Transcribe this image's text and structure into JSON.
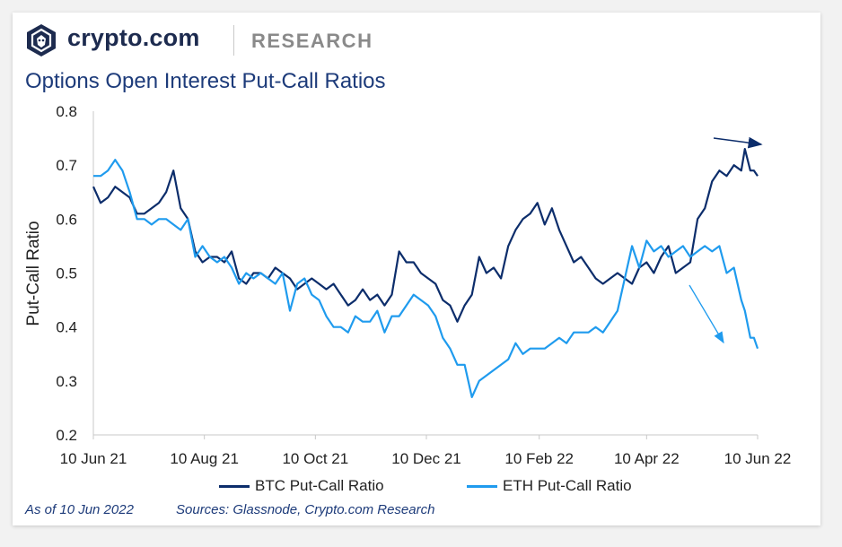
{
  "header": {
    "brand": "crypto.com",
    "section": "RESEARCH",
    "logo_icon": "crypto-com-lion-shield-icon"
  },
  "footer": {
    "as_of": "As of 10 Jun 2022",
    "sources": "Sources: Glassnode, Crypto.com Research"
  },
  "chart_data": {
    "type": "line",
    "title": "Options Open Interest Put-Call Ratios",
    "xlabel": "",
    "ylabel": "Put-Call Ratio",
    "ylim": [
      0.2,
      0.8
    ],
    "yticks": [
      "0.2",
      "0.3",
      "0.4",
      "0.5",
      "0.6",
      "0.7",
      "0.8"
    ],
    "xlim": [
      "2021-06-10",
      "2022-06-10"
    ],
    "xticks": [
      {
        "date": "2021-06-10",
        "label": "10 Jun 21"
      },
      {
        "date": "2021-08-10",
        "label": "10 Aug 21"
      },
      {
        "date": "2021-10-10",
        "label": "10 Oct 21"
      },
      {
        "date": "2021-12-10",
        "label": "10 Dec 21"
      },
      {
        "date": "2022-02-10",
        "label": "10 Feb 22"
      },
      {
        "date": "2022-04-10",
        "label": "10 Apr 22"
      },
      {
        "date": "2022-06-10",
        "label": "10 Jun 22"
      }
    ],
    "grid": false,
    "legend_position": "bottom",
    "series": [
      {
        "name": "BTC Put-Call Ratio",
        "color": "#0c2d6b",
        "points": [
          [
            "2021-06-10",
            0.66
          ],
          [
            "2021-06-14",
            0.63
          ],
          [
            "2021-06-18",
            0.64
          ],
          [
            "2021-06-22",
            0.66
          ],
          [
            "2021-06-26",
            0.65
          ],
          [
            "2021-06-30",
            0.64
          ],
          [
            "2021-07-04",
            0.61
          ],
          [
            "2021-07-08",
            0.61
          ],
          [
            "2021-07-12",
            0.62
          ],
          [
            "2021-07-16",
            0.63
          ],
          [
            "2021-07-20",
            0.65
          ],
          [
            "2021-07-24",
            0.69
          ],
          [
            "2021-07-28",
            0.62
          ],
          [
            "2021-08-01",
            0.6
          ],
          [
            "2021-08-05",
            0.54
          ],
          [
            "2021-08-09",
            0.52
          ],
          [
            "2021-08-13",
            0.53
          ],
          [
            "2021-08-17",
            0.53
          ],
          [
            "2021-08-21",
            0.52
          ],
          [
            "2021-08-25",
            0.54
          ],
          [
            "2021-08-29",
            0.49
          ],
          [
            "2021-09-02",
            0.48
          ],
          [
            "2021-09-06",
            0.5
          ],
          [
            "2021-09-10",
            0.5
          ],
          [
            "2021-09-14",
            0.49
          ],
          [
            "2021-09-18",
            0.51
          ],
          [
            "2021-09-22",
            0.5
          ],
          [
            "2021-09-26",
            0.49
          ],
          [
            "2021-09-30",
            0.47
          ],
          [
            "2021-10-04",
            0.48
          ],
          [
            "2021-10-08",
            0.49
          ],
          [
            "2021-10-12",
            0.48
          ],
          [
            "2021-10-16",
            0.47
          ],
          [
            "2021-10-20",
            0.48
          ],
          [
            "2021-10-24",
            0.46
          ],
          [
            "2021-10-28",
            0.44
          ],
          [
            "2021-11-01",
            0.45
          ],
          [
            "2021-11-05",
            0.47
          ],
          [
            "2021-11-09",
            0.45
          ],
          [
            "2021-11-13",
            0.46
          ],
          [
            "2021-11-17",
            0.44
          ],
          [
            "2021-11-21",
            0.46
          ],
          [
            "2021-11-25",
            0.54
          ],
          [
            "2021-11-29",
            0.52
          ],
          [
            "2021-12-03",
            0.52
          ],
          [
            "2021-12-07",
            0.5
          ],
          [
            "2021-12-11",
            0.49
          ],
          [
            "2021-12-15",
            0.48
          ],
          [
            "2021-12-19",
            0.45
          ],
          [
            "2021-12-23",
            0.44
          ],
          [
            "2021-12-27",
            0.41
          ],
          [
            "2021-12-31",
            0.44
          ],
          [
            "2022-01-04",
            0.46
          ],
          [
            "2022-01-08",
            0.53
          ],
          [
            "2022-01-12",
            0.5
          ],
          [
            "2022-01-16",
            0.51
          ],
          [
            "2022-01-20",
            0.49
          ],
          [
            "2022-01-24",
            0.55
          ],
          [
            "2022-01-28",
            0.58
          ],
          [
            "2022-02-01",
            0.6
          ],
          [
            "2022-02-05",
            0.61
          ],
          [
            "2022-02-09",
            0.63
          ],
          [
            "2022-02-13",
            0.59
          ],
          [
            "2022-02-17",
            0.62
          ],
          [
            "2022-02-21",
            0.58
          ],
          [
            "2022-02-25",
            0.55
          ],
          [
            "2022-03-01",
            0.52
          ],
          [
            "2022-03-05",
            0.53
          ],
          [
            "2022-03-09",
            0.51
          ],
          [
            "2022-03-13",
            0.49
          ],
          [
            "2022-03-17",
            0.48
          ],
          [
            "2022-03-21",
            0.49
          ],
          [
            "2022-03-25",
            0.5
          ],
          [
            "2022-03-29",
            0.49
          ],
          [
            "2022-04-02",
            0.48
          ],
          [
            "2022-04-06",
            0.51
          ],
          [
            "2022-04-10",
            0.52
          ],
          [
            "2022-04-14",
            0.5
          ],
          [
            "2022-04-18",
            0.53
          ],
          [
            "2022-04-22",
            0.55
          ],
          [
            "2022-04-26",
            0.5
          ],
          [
            "2022-04-30",
            0.51
          ],
          [
            "2022-05-04",
            0.52
          ],
          [
            "2022-05-08",
            0.6
          ],
          [
            "2022-05-12",
            0.62
          ],
          [
            "2022-05-16",
            0.67
          ],
          [
            "2022-05-20",
            0.69
          ],
          [
            "2022-05-24",
            0.68
          ],
          [
            "2022-05-28",
            0.7
          ],
          [
            "2022-06-01",
            0.69
          ],
          [
            "2022-06-03",
            0.73
          ],
          [
            "2022-06-06",
            0.69
          ],
          [
            "2022-06-08",
            0.69
          ],
          [
            "2022-06-10",
            0.68
          ]
        ]
      },
      {
        "name": "ETH Put-Call Ratio",
        "color": "#1f9bee",
        "points": [
          [
            "2021-06-10",
            0.68
          ],
          [
            "2021-06-14",
            0.68
          ],
          [
            "2021-06-18",
            0.69
          ],
          [
            "2021-06-22",
            0.71
          ],
          [
            "2021-06-26",
            0.69
          ],
          [
            "2021-06-30",
            0.65
          ],
          [
            "2021-07-04",
            0.6
          ],
          [
            "2021-07-08",
            0.6
          ],
          [
            "2021-07-12",
            0.59
          ],
          [
            "2021-07-16",
            0.6
          ],
          [
            "2021-07-20",
            0.6
          ],
          [
            "2021-07-24",
            0.59
          ],
          [
            "2021-07-28",
            0.58
          ],
          [
            "2021-08-01",
            0.6
          ],
          [
            "2021-08-05",
            0.53
          ],
          [
            "2021-08-09",
            0.55
          ],
          [
            "2021-08-13",
            0.53
          ],
          [
            "2021-08-17",
            0.52
          ],
          [
            "2021-08-21",
            0.53
          ],
          [
            "2021-08-25",
            0.51
          ],
          [
            "2021-08-29",
            0.48
          ],
          [
            "2021-09-02",
            0.5
          ],
          [
            "2021-09-06",
            0.49
          ],
          [
            "2021-09-10",
            0.5
          ],
          [
            "2021-09-14",
            0.49
          ],
          [
            "2021-09-18",
            0.48
          ],
          [
            "2021-09-22",
            0.5
          ],
          [
            "2021-09-26",
            0.43
          ],
          [
            "2021-09-30",
            0.48
          ],
          [
            "2021-10-04",
            0.49
          ],
          [
            "2021-10-08",
            0.46
          ],
          [
            "2021-10-12",
            0.45
          ],
          [
            "2021-10-16",
            0.42
          ],
          [
            "2021-10-20",
            0.4
          ],
          [
            "2021-10-24",
            0.4
          ],
          [
            "2021-10-28",
            0.39
          ],
          [
            "2021-11-01",
            0.42
          ],
          [
            "2021-11-05",
            0.41
          ],
          [
            "2021-11-09",
            0.41
          ],
          [
            "2021-11-13",
            0.43
          ],
          [
            "2021-11-17",
            0.39
          ],
          [
            "2021-11-21",
            0.42
          ],
          [
            "2021-11-25",
            0.42
          ],
          [
            "2021-11-29",
            0.44
          ],
          [
            "2021-12-03",
            0.46
          ],
          [
            "2021-12-07",
            0.45
          ],
          [
            "2021-12-11",
            0.44
          ],
          [
            "2021-12-15",
            0.42
          ],
          [
            "2021-12-19",
            0.38
          ],
          [
            "2021-12-23",
            0.36
          ],
          [
            "2021-12-27",
            0.33
          ],
          [
            "2021-12-31",
            0.33
          ],
          [
            "2022-01-04",
            0.27
          ],
          [
            "2022-01-08",
            0.3
          ],
          [
            "2022-01-12",
            0.31
          ],
          [
            "2022-01-16",
            0.32
          ],
          [
            "2022-01-20",
            0.33
          ],
          [
            "2022-01-24",
            0.34
          ],
          [
            "2022-01-28",
            0.37
          ],
          [
            "2022-02-01",
            0.35
          ],
          [
            "2022-02-05",
            0.36
          ],
          [
            "2022-02-09",
            0.36
          ],
          [
            "2022-02-13",
            0.36
          ],
          [
            "2022-02-17",
            0.37
          ],
          [
            "2022-02-21",
            0.38
          ],
          [
            "2022-02-25",
            0.37
          ],
          [
            "2022-03-01",
            0.39
          ],
          [
            "2022-03-05",
            0.39
          ],
          [
            "2022-03-09",
            0.39
          ],
          [
            "2022-03-13",
            0.4
          ],
          [
            "2022-03-17",
            0.39
          ],
          [
            "2022-03-21",
            0.41
          ],
          [
            "2022-03-25",
            0.43
          ],
          [
            "2022-03-29",
            0.49
          ],
          [
            "2022-04-02",
            0.55
          ],
          [
            "2022-04-06",
            0.51
          ],
          [
            "2022-04-10",
            0.56
          ],
          [
            "2022-04-14",
            0.54
          ],
          [
            "2022-04-18",
            0.55
          ],
          [
            "2022-04-22",
            0.53
          ],
          [
            "2022-04-26",
            0.54
          ],
          [
            "2022-04-30",
            0.55
          ],
          [
            "2022-05-04",
            0.53
          ],
          [
            "2022-05-08",
            0.54
          ],
          [
            "2022-05-12",
            0.55
          ],
          [
            "2022-05-16",
            0.54
          ],
          [
            "2022-05-20",
            0.55
          ],
          [
            "2022-05-24",
            0.5
          ],
          [
            "2022-05-28",
            0.51
          ],
          [
            "2022-06-01",
            0.45
          ],
          [
            "2022-06-03",
            0.43
          ],
          [
            "2022-06-06",
            0.38
          ],
          [
            "2022-06-08",
            0.38
          ],
          [
            "2022-06-10",
            0.36
          ]
        ]
      }
    ],
    "annotations": [
      {
        "type": "arrow",
        "series": "BTC Put-Call Ratio",
        "direction": "up",
        "color": "#0c2d6b"
      },
      {
        "type": "arrow",
        "series": "ETH Put-Call Ratio",
        "direction": "down",
        "color": "#1f9bee"
      }
    ]
  }
}
